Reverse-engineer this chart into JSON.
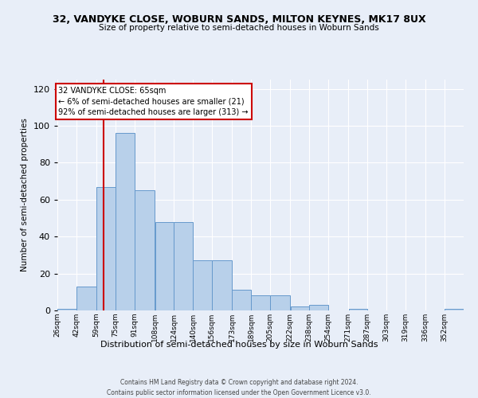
{
  "title": "32, VANDYKE CLOSE, WOBURN SANDS, MILTON KEYNES, MK17 8UX",
  "subtitle": "Size of property relative to semi-detached houses in Woburn Sands",
  "xlabel": "Distribution of semi-detached houses by size in Woburn Sands",
  "ylabel": "Number of semi-detached properties",
  "bin_labels": [
    "26sqm",
    "42sqm",
    "59sqm",
    "75sqm",
    "91sqm",
    "108sqm",
    "124sqm",
    "140sqm",
    "156sqm",
    "173sqm",
    "189sqm",
    "205sqm",
    "222sqm",
    "238sqm",
    "254sqm",
    "271sqm",
    "287sqm",
    "303sqm",
    "319sqm",
    "336sqm",
    "352sqm"
  ],
  "bin_edges": [
    26,
    42,
    59,
    75,
    91,
    108,
    124,
    140,
    156,
    173,
    189,
    205,
    222,
    238,
    254,
    271,
    287,
    303,
    319,
    336,
    352,
    368
  ],
  "bar_values": [
    1,
    13,
    67,
    96,
    65,
    48,
    48,
    27,
    27,
    11,
    8,
    8,
    2,
    3,
    0,
    1,
    0,
    0,
    0,
    0,
    1
  ],
  "bar_color": "#b8d0ea",
  "bar_edge_color": "#6699cc",
  "ylim": [
    0,
    125
  ],
  "yticks": [
    0,
    20,
    40,
    60,
    80,
    100,
    120
  ],
  "red_line_x": 65,
  "annotation_title": "32 VANDYKE CLOSE: 65sqm",
  "annotation_line1": "← 6% of semi-detached houses are smaller (21)",
  "annotation_line2": "92% of semi-detached houses are larger (313) →",
  "annotation_box_color": "#ffffff",
  "annotation_box_edge": "#cc0000",
  "red_line_color": "#cc0000",
  "background_color": "#e8eef8",
  "grid_color": "#ffffff",
  "footer1": "Contains HM Land Registry data © Crown copyright and database right 2024.",
  "footer2": "Contains public sector information licensed under the Open Government Licence v3.0."
}
